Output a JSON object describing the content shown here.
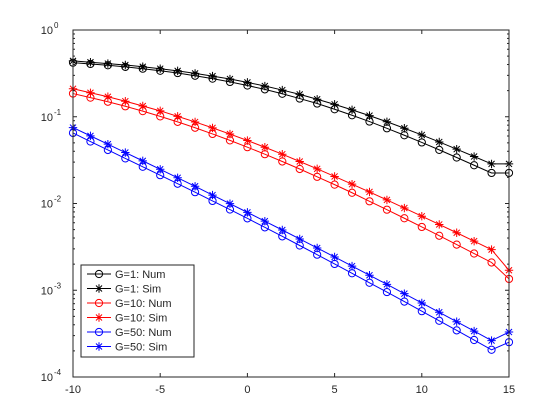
{
  "chart_data": {
    "type": "line",
    "title": "",
    "xlabel": "",
    "ylabel": "",
    "xlim": [
      -10,
      15
    ],
    "ylim": [
      0.0001,
      1
    ],
    "yscale": "log",
    "grid": false,
    "legend_position": "bottom-left",
    "x_ticks": [
      {
        "value": -10,
        "label": "-10"
      },
      {
        "value": -5,
        "label": "-5"
      },
      {
        "value": 0,
        "label": "0"
      },
      {
        "value": 5,
        "label": "5"
      },
      {
        "value": 10,
        "label": "10"
      },
      {
        "value": 15,
        "label": "15"
      }
    ],
    "y_ticks": [
      {
        "value": 0.0001,
        "base": "10",
        "exp": "-4"
      },
      {
        "value": 0.001,
        "base": "10",
        "exp": "-3"
      },
      {
        "value": 0.01,
        "base": "10",
        "exp": "-2"
      },
      {
        "value": 0.1,
        "base": "10",
        "exp": "-1"
      },
      {
        "value": 1,
        "base": "10",
        "exp": "0"
      }
    ],
    "x": [
      -10,
      -9,
      -8,
      -7,
      -6,
      -5,
      -4,
      -3,
      -2,
      -1,
      0,
      1,
      2,
      3,
      4,
      5,
      6,
      7,
      8,
      9,
      10,
      11,
      12,
      13,
      14,
      15
    ],
    "series": [
      {
        "name": "G=1: Num",
        "color": "#000000",
        "marker": "circle",
        "values": [
          0.42,
          0.406,
          0.392,
          0.376,
          0.358,
          0.339,
          0.319,
          0.297,
          0.275,
          0.252,
          0.229,
          0.207,
          0.184,
          0.162,
          0.142,
          0.122,
          0.104,
          0.088,
          0.0736,
          0.0612,
          0.0506,
          0.0415,
          0.0339,
          0.0276,
          0.0225,
          0.0225
        ]
      },
      {
        "name": "G=1: Sim",
        "color": "#000000",
        "marker": "star",
        "values": [
          0.44,
          0.425,
          0.41,
          0.395,
          0.377,
          0.358,
          0.338,
          0.316,
          0.294,
          0.272,
          0.249,
          0.226,
          0.203,
          0.181,
          0.159,
          0.139,
          0.12,
          0.103,
          0.0875,
          0.0737,
          0.0617,
          0.0512,
          0.0423,
          0.0348,
          0.0286,
          0.0286
        ]
      },
      {
        "name": "G=10: Num",
        "color": "#ff0000",
        "marker": "circle",
        "values": [
          0.185,
          0.166,
          0.149,
          0.132,
          0.116,
          0.101,
          0.0873,
          0.0747,
          0.0634,
          0.0534,
          0.0446,
          0.037,
          0.0305,
          0.025,
          0.0203,
          0.0165,
          0.0133,
          0.0106,
          0.00849,
          0.00676,
          0.00537,
          0.00425,
          0.00336,
          0.00265,
          0.00209,
          0.00135
        ]
      },
      {
        "name": "G=10: Sim",
        "color": "#ff0000",
        "marker": "star",
        "values": [
          0.21,
          0.189,
          0.17,
          0.151,
          0.133,
          0.117,
          0.101,
          0.0871,
          0.0744,
          0.0632,
          0.0532,
          0.0445,
          0.037,
          0.0305,
          0.0251,
          0.0205,
          0.0167,
          0.0136,
          0.011,
          0.00887,
          0.00714,
          0.00573,
          0.0046,
          0.00368,
          0.00294,
          0.0017
        ]
      },
      {
        "name": "G=50: Num",
        "color": "#0000ff",
        "marker": "circle",
        "values": [
          0.065,
          0.0518,
          0.0414,
          0.0331,
          0.0265,
          0.0212,
          0.0169,
          0.0135,
          0.0107,
          0.00852,
          0.00674,
          0.00531,
          0.00418,
          0.00328,
          0.00257,
          0.00201,
          0.00157,
          0.00122,
          0.000953,
          0.00074,
          0.000574,
          0.000445,
          0.000345,
          0.000267,
          0.000206,
          0.000252
        ]
      },
      {
        "name": "G=50: Sim",
        "color": "#0000ff",
        "marker": "star",
        "values": [
          0.075,
          0.0602,
          0.0483,
          0.0387,
          0.031,
          0.0248,
          0.0198,
          0.0158,
          0.0125,
          0.00996,
          0.0079,
          0.00626,
          0.00495,
          0.0039,
          0.00307,
          0.00242,
          0.0019,
          0.00149,
          0.00117,
          0.000913,
          0.000713,
          0.000557,
          0.000434,
          0.000338,
          0.000263,
          0.00033
        ]
      }
    ]
  }
}
